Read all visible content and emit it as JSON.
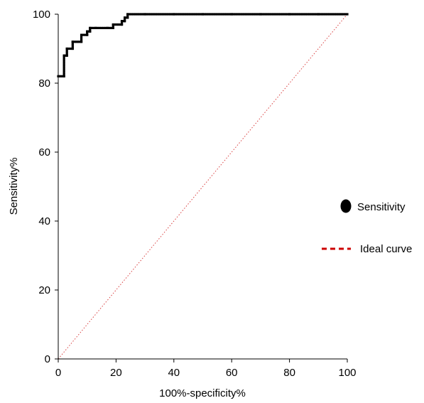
{
  "chart_data": {
    "type": "line",
    "title": "",
    "xlabel": "100%-specificity%",
    "ylabel": "Sensitivity%",
    "xlim": [
      0,
      100
    ],
    "ylim": [
      0,
      100
    ],
    "xticks": [
      0,
      20,
      40,
      60,
      80,
      100
    ],
    "yticks": [
      0,
      20,
      40,
      60,
      80,
      100
    ],
    "grid": false,
    "legend_position": "right",
    "series": [
      {
        "name": "Sensitivity",
        "color": "#000000",
        "style": "step-with-markers",
        "x": [
          0,
          2,
          2,
          3,
          3,
          5,
          5,
          8,
          8,
          10,
          10,
          11,
          11,
          13,
          17,
          19,
          19,
          22,
          22,
          23,
          23,
          24,
          24,
          30,
          40,
          50,
          60,
          70,
          80,
          90,
          100
        ],
        "y": [
          82,
          82,
          88,
          88,
          90,
          90,
          92,
          92,
          94,
          94,
          95,
          95,
          96,
          96,
          96,
          96,
          97,
          97,
          98,
          98,
          99,
          99,
          100,
          100,
          100,
          100,
          100,
          100,
          100,
          100,
          100
        ]
      },
      {
        "name": "Ideal curve",
        "color": "#cc0000",
        "style": "dotted",
        "x": [
          0,
          100
        ],
        "y": [
          0,
          100
        ]
      }
    ]
  }
}
